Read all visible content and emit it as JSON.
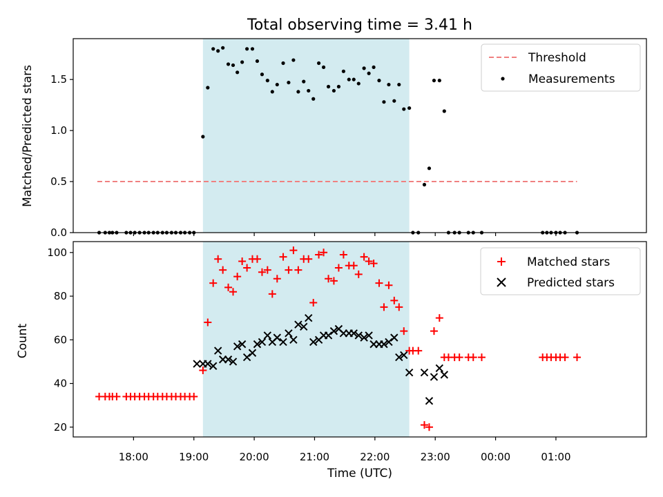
{
  "chart_data": [
    {
      "type": "scatter",
      "title": "Total observing time = 3.41 h",
      "ylabel": "Matched/Predicted stars",
      "xlabel": "",
      "ylim": [
        0,
        1.9
      ],
      "yticks": [
        "0.0",
        "0.5",
        "1.0",
        "1.5"
      ],
      "x_axis": {
        "unit": "hours since 00:00 UTC of first night",
        "xlim": [
          17.0,
          26.5
        ]
      },
      "observing_window": {
        "start": 19.15,
        "end": 22.57,
        "color": "#d3ebf0"
      },
      "threshold": {
        "name": "Threshold",
        "value": 0.5,
        "x_range": [
          17.4,
          25.35
        ],
        "color": "#f08080",
        "style": "dashed"
      },
      "series": [
        {
          "name": "Measurements",
          "color": "#000000",
          "points": [
            [
              17.43,
              0
            ],
            [
              17.53,
              0
            ],
            [
              17.6,
              0
            ],
            [
              17.65,
              0
            ],
            [
              17.72,
              0
            ],
            [
              17.88,
              0
            ],
            [
              17.95,
              0
            ],
            [
              18.02,
              0
            ],
            [
              18.1,
              0
            ],
            [
              18.18,
              0
            ],
            [
              18.25,
              0
            ],
            [
              18.33,
              0
            ],
            [
              18.4,
              0
            ],
            [
              18.48,
              0
            ],
            [
              18.55,
              0
            ],
            [
              18.63,
              0
            ],
            [
              18.7,
              0
            ],
            [
              18.78,
              0
            ],
            [
              18.85,
              0
            ],
            [
              18.93,
              0
            ],
            [
              19.0,
              0
            ],
            [
              19.15,
              0.94
            ],
            [
              19.23,
              1.42
            ],
            [
              19.32,
              1.8
            ],
            [
              19.4,
              1.78
            ],
            [
              19.48,
              1.81
            ],
            [
              19.57,
              1.65
            ],
            [
              19.65,
              1.64
            ],
            [
              19.72,
              1.57
            ],
            [
              19.8,
              1.67
            ],
            [
              19.88,
              1.8
            ],
            [
              19.97,
              1.8
            ],
            [
              20.05,
              1.68
            ],
            [
              20.13,
              1.55
            ],
            [
              20.22,
              1.49
            ],
            [
              20.3,
              1.38
            ],
            [
              20.38,
              1.45
            ],
            [
              20.48,
              1.66
            ],
            [
              20.57,
              1.47
            ],
            [
              20.65,
              1.69
            ],
            [
              20.73,
              1.38
            ],
            [
              20.82,
              1.48
            ],
            [
              20.9,
              1.39
            ],
            [
              20.98,
              1.31
            ],
            [
              21.07,
              1.66
            ],
            [
              21.15,
              1.62
            ],
            [
              21.23,
              1.43
            ],
            [
              21.32,
              1.39
            ],
            [
              21.4,
              1.43
            ],
            [
              21.48,
              1.58
            ],
            [
              21.57,
              1.5
            ],
            [
              21.65,
              1.5
            ],
            [
              21.73,
              1.46
            ],
            [
              21.82,
              1.61
            ],
            [
              21.9,
              1.56
            ],
            [
              21.98,
              1.62
            ],
            [
              22.07,
              1.49
            ],
            [
              22.15,
              1.28
            ],
            [
              22.23,
              1.45
            ],
            [
              22.32,
              1.29
            ],
            [
              22.4,
              1.45
            ],
            [
              22.48,
              1.21
            ],
            [
              22.57,
              1.22
            ],
            [
              22.63,
              0
            ],
            [
              22.72,
              0
            ],
            [
              22.82,
              0.47
            ],
            [
              22.9,
              0.63
            ],
            [
              22.98,
              1.49
            ],
            [
              23.07,
              1.49
            ],
            [
              23.15,
              1.19
            ],
            [
              23.22,
              0
            ],
            [
              23.32,
              0
            ],
            [
              23.4,
              0
            ],
            [
              23.55,
              0
            ],
            [
              23.63,
              0
            ],
            [
              23.77,
              0
            ],
            [
              24.78,
              0
            ],
            [
              24.85,
              0
            ],
            [
              24.92,
              0
            ],
            [
              25.0,
              0
            ],
            [
              25.07,
              0
            ],
            [
              25.15,
              0
            ],
            [
              25.35,
              0
            ]
          ]
        }
      ]
    },
    {
      "type": "scatter",
      "title": "",
      "ylabel": "Count",
      "xlabel": "Time (UTC)",
      "ylim": [
        15.5,
        105
      ],
      "yticks": [
        "20",
        "40",
        "60",
        "80",
        "100"
      ],
      "xticks": [
        "18:00",
        "19:00",
        "20:00",
        "21:00",
        "22:00",
        "23:00",
        "00:00",
        "01:00"
      ],
      "x_axis": {
        "unit": "hours since 00:00 UTC of first night",
        "xlim": [
          17.0,
          26.5
        ]
      },
      "observing_window": {
        "start": 19.15,
        "end": 22.57,
        "color": "#d3ebf0"
      },
      "series": [
        {
          "name": "Matched stars",
          "color": "#ff0000",
          "marker": "+",
          "points": [
            [
              17.43,
              34
            ],
            [
              17.53,
              34
            ],
            [
              17.6,
              34
            ],
            [
              17.65,
              34
            ],
            [
              17.72,
              34
            ],
            [
              17.88,
              34
            ],
            [
              17.95,
              34
            ],
            [
              18.02,
              34
            ],
            [
              18.1,
              34
            ],
            [
              18.18,
              34
            ],
            [
              18.25,
              34
            ],
            [
              18.33,
              34
            ],
            [
              18.4,
              34
            ],
            [
              18.48,
              34
            ],
            [
              18.55,
              34
            ],
            [
              18.63,
              34
            ],
            [
              18.7,
              34
            ],
            [
              18.78,
              34
            ],
            [
              18.85,
              34
            ],
            [
              18.93,
              34
            ],
            [
              19.0,
              34
            ],
            [
              19.15,
              46
            ],
            [
              19.23,
              68
            ],
            [
              19.32,
              86
            ],
            [
              19.4,
              97
            ],
            [
              19.48,
              92
            ],
            [
              19.57,
              84
            ],
            [
              19.65,
              82
            ],
            [
              19.72,
              89
            ],
            [
              19.8,
              96
            ],
            [
              19.88,
              93
            ],
            [
              19.97,
              97
            ],
            [
              20.05,
              97
            ],
            [
              20.13,
              91
            ],
            [
              20.22,
              92
            ],
            [
              20.3,
              81
            ],
            [
              20.38,
              88
            ],
            [
              20.48,
              98
            ],
            [
              20.57,
              92
            ],
            [
              20.65,
              101
            ],
            [
              20.73,
              92
            ],
            [
              20.82,
              97
            ],
            [
              20.9,
              97
            ],
            [
              20.98,
              77
            ],
            [
              21.07,
              99
            ],
            [
              21.15,
              100
            ],
            [
              21.23,
              88
            ],
            [
              21.32,
              87
            ],
            [
              21.4,
              93
            ],
            [
              21.48,
              99
            ],
            [
              21.57,
              94
            ],
            [
              21.65,
              94
            ],
            [
              21.73,
              90
            ],
            [
              21.82,
              98
            ],
            [
              21.9,
              96
            ],
            [
              21.98,
              95
            ],
            [
              22.07,
              86
            ],
            [
              22.15,
              75
            ],
            [
              22.23,
              85
            ],
            [
              22.32,
              78
            ],
            [
              22.4,
              75
            ],
            [
              22.48,
              64
            ],
            [
              22.57,
              55
            ],
            [
              22.63,
              55
            ],
            [
              22.72,
              55
            ],
            [
              22.82,
              21
            ],
            [
              22.9,
              20
            ],
            [
              22.98,
              64
            ],
            [
              23.07,
              70
            ],
            [
              23.15,
              52
            ],
            [
              23.22,
              52
            ],
            [
              23.32,
              52
            ],
            [
              23.4,
              52
            ],
            [
              23.55,
              52
            ],
            [
              23.63,
              52
            ],
            [
              23.77,
              52
            ],
            [
              24.78,
              52
            ],
            [
              24.85,
              52
            ],
            [
              24.92,
              52
            ],
            [
              25.0,
              52
            ],
            [
              25.07,
              52
            ],
            [
              25.15,
              52
            ],
            [
              25.35,
              52
            ]
          ]
        },
        {
          "name": "Predicted stars",
          "color": "#000000",
          "marker": "x",
          "points": [
            [
              19.05,
              49
            ],
            [
              19.15,
              49
            ],
            [
              19.23,
              49
            ],
            [
              19.32,
              48
            ],
            [
              19.4,
              55
            ],
            [
              19.48,
              51
            ],
            [
              19.57,
              51
            ],
            [
              19.65,
              50
            ],
            [
              19.72,
              57
            ],
            [
              19.8,
              58
            ],
            [
              19.88,
              52
            ],
            [
              19.97,
              54
            ],
            [
              20.05,
              58
            ],
            [
              20.13,
              59
            ],
            [
              20.22,
              62
            ],
            [
              20.3,
              59
            ],
            [
              20.38,
              61
            ],
            [
              20.48,
              59
            ],
            [
              20.57,
              63
            ],
            [
              20.65,
              60
            ],
            [
              20.73,
              67
            ],
            [
              20.82,
              66
            ],
            [
              20.9,
              70
            ],
            [
              20.98,
              59
            ],
            [
              21.07,
              60
            ],
            [
              21.15,
              62
            ],
            [
              21.23,
              62
            ],
            [
              21.32,
              64
            ],
            [
              21.4,
              65
            ],
            [
              21.48,
              63
            ],
            [
              21.57,
              63
            ],
            [
              21.65,
              63
            ],
            [
              21.73,
              62
            ],
            [
              21.82,
              61
            ],
            [
              21.9,
              62
            ],
            [
              21.98,
              58
            ],
            [
              22.07,
              58
            ],
            [
              22.15,
              58
            ],
            [
              22.23,
              59
            ],
            [
              22.32,
              61
            ],
            [
              22.4,
              52
            ],
            [
              22.48,
              53
            ],
            [
              22.57,
              45
            ],
            [
              22.82,
              45
            ],
            [
              22.9,
              32
            ],
            [
              22.98,
              43
            ],
            [
              23.07,
              47
            ],
            [
              23.15,
              44
            ]
          ]
        }
      ]
    }
  ]
}
